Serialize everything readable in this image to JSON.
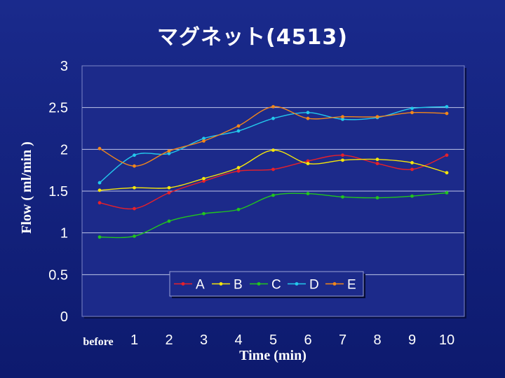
{
  "slide": {
    "title": "マグネット(4513)"
  },
  "chart_data": {
    "type": "line",
    "title": "マグネット(4513)",
    "xlabel": "Time (min)",
    "ylabel": "Flow ( ml/min )",
    "categories": [
      "before",
      "1",
      "2",
      "3",
      "4",
      "5",
      "6",
      "7",
      "8",
      "9",
      "10"
    ],
    "ylim": [
      0,
      3
    ],
    "yticks": [
      "0",
      "0.5",
      "1",
      "1.5",
      "2",
      "2.5",
      "3"
    ],
    "grid": true,
    "legend_position": "bottom-center",
    "series": [
      {
        "name": "A",
        "color": "#e8202a",
        "values": [
          1.36,
          1.29,
          1.48,
          1.62,
          1.74,
          1.76,
          1.86,
          1.93,
          1.83,
          1.76,
          1.93
        ]
      },
      {
        "name": "B",
        "color": "#f5e60a",
        "values": [
          1.51,
          1.54,
          1.54,
          1.65,
          1.78,
          1.99,
          1.83,
          1.87,
          1.88,
          1.84,
          1.72
        ]
      },
      {
        "name": "C",
        "color": "#22c41e",
        "values": [
          0.95,
          0.96,
          1.14,
          1.23,
          1.28,
          1.45,
          1.47,
          1.43,
          1.42,
          1.44,
          1.48
        ]
      },
      {
        "name": "D",
        "color": "#23c8ec",
        "values": [
          1.6,
          1.93,
          1.95,
          2.13,
          2.22,
          2.37,
          2.44,
          2.36,
          2.38,
          2.49,
          2.51
        ]
      },
      {
        "name": "E",
        "color": "#f2861a",
        "values": [
          2.01,
          1.8,
          1.98,
          2.1,
          2.28,
          2.51,
          2.37,
          2.39,
          2.39,
          2.44,
          2.43
        ]
      }
    ],
    "plot_background": "#1c2a8a",
    "grid_color": "#bfc6e8"
  }
}
